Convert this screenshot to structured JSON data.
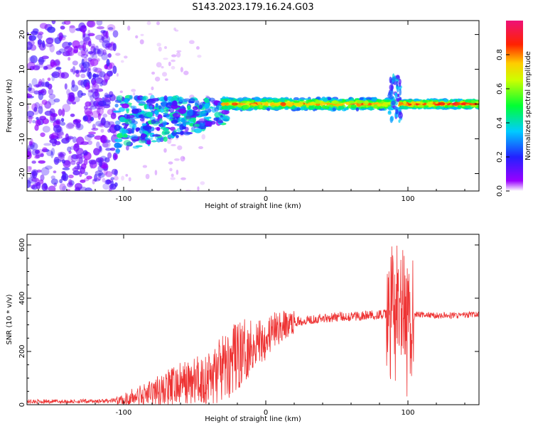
{
  "title": "S143.2023.179.16.24.G03",
  "colors": {
    "snr_line": "#ee3333",
    "axis": "#000000",
    "background": "#ffffff"
  },
  "chart_data": [
    {
      "type": "heatmap",
      "xlabel": "Height of straight line (km)",
      "ylabel": "Frequency (Hz)",
      "xlim": [
        -168,
        150
      ],
      "ylim": [
        -25,
        24
      ],
      "x_ticks": [
        -100,
        0,
        100
      ],
      "y_ticks": [
        -20,
        -10,
        0,
        10,
        20
      ],
      "colorbar": {
        "label": "Normalized spectral amplitude",
        "range": [
          0,
          1
        ],
        "ticks": [
          0.0,
          0.2,
          0.4,
          0.6,
          0.8
        ],
        "colormap": "rainbow (violet-blue-cyan-green-yellow-red-magenta)"
      },
      "regions": [
        {
          "x_range": [
            -168,
            -105
          ],
          "freq_range": [
            -25,
            24
          ],
          "amplitude": "0.1-0.3",
          "pattern": "scattered noise"
        },
        {
          "x_range": [
            -105,
            -30
          ],
          "freq_range": [
            -15,
            8
          ],
          "amplitude": "0.1-0.5",
          "pattern": "scattered, centered descending from -6 Hz to -2 Hz"
        },
        {
          "x_range": [
            -30,
            90
          ],
          "freq_range": [
            -2,
            1
          ],
          "amplitude": "0.5-0.9",
          "pattern": "narrow band near 0 Hz"
        },
        {
          "x_range": [
            88,
            95
          ],
          "freq_range": [
            -5,
            8
          ],
          "amplitude": "0.2-0.5",
          "pattern": "burst"
        },
        {
          "x_range": [
            95,
            150
          ],
          "freq_range": [
            -0.5,
            0.5
          ],
          "amplitude": "0.8-0.95",
          "pattern": "tight band at 0 Hz"
        }
      ]
    },
    {
      "type": "line",
      "xlabel": "Height of straight line (km)",
      "ylabel": "SNR (10 * v/v)",
      "xlim": [
        -168,
        150
      ],
      "ylim": [
        0,
        640
      ],
      "x_ticks": [
        -100,
        0,
        100
      ],
      "y_ticks": [
        0,
        200,
        400,
        600
      ],
      "series": [
        {
          "x": [
            -168,
            -140,
            -110,
            -100,
            -90,
            -80,
            -70,
            -60,
            -50,
            -40,
            -30,
            -20,
            -10,
            0,
            10,
            20,
            30,
            40,
            50,
            60,
            70,
            80,
            90,
            95,
            98,
            100,
            102,
            105,
            110,
            120,
            130,
            140,
            150
          ],
          "y": [
            12,
            12,
            14,
            18,
            30,
            45,
            60,
            75,
            85,
            100,
            135,
            180,
            225,
            255,
            290,
            310,
            320,
            325,
            330,
            332,
            335,
            338,
            340,
            340,
            300,
            250,
            300,
            340,
            338,
            335,
            335,
            336,
            340
          ]
        }
      ]
    }
  ]
}
